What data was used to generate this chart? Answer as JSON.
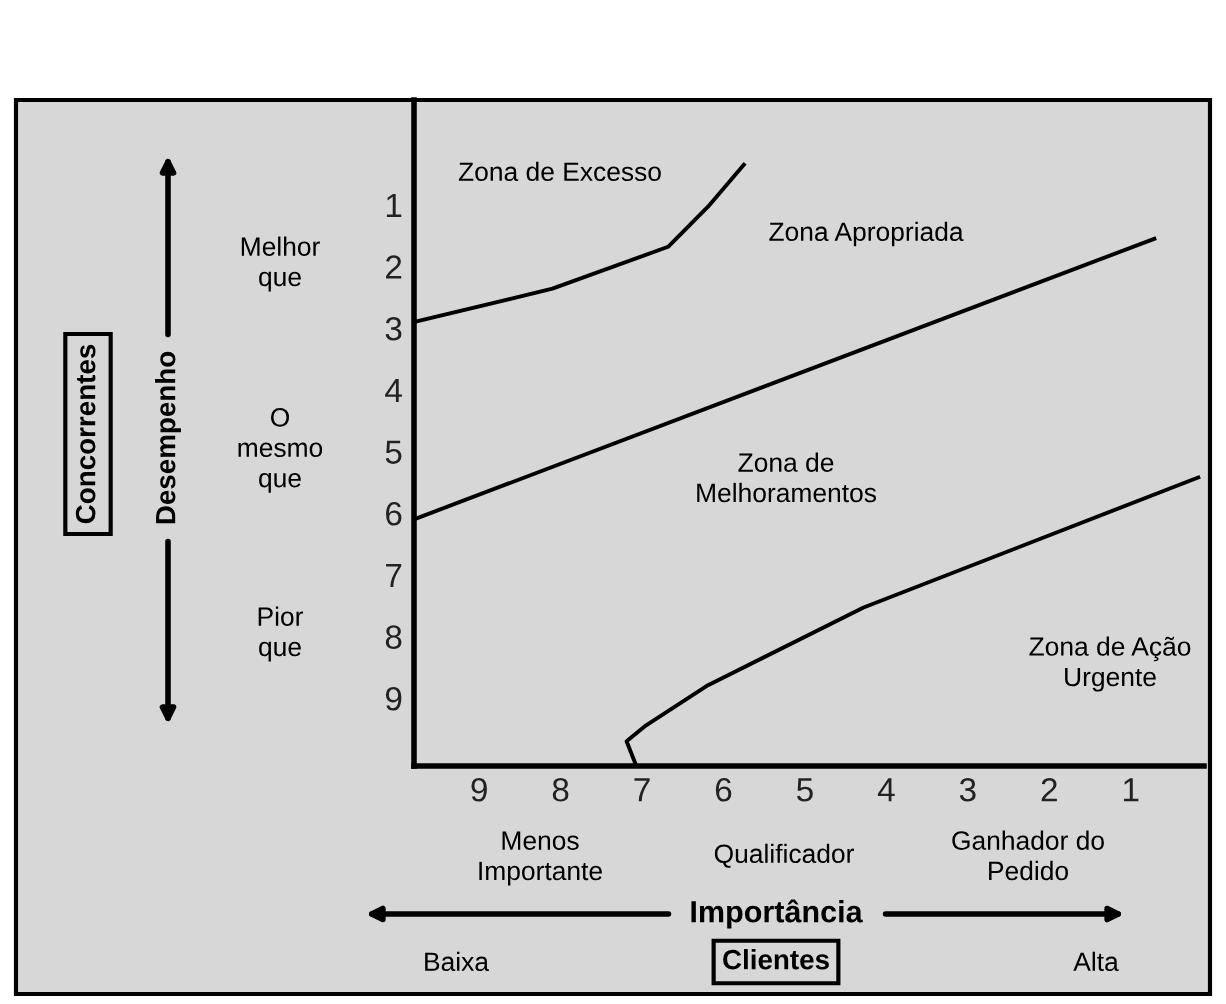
{
  "chart_data": {
    "type": "line",
    "xlabel": "Importância",
    "xlim": [
      9.8,
      0.1
    ],
    "xticks": [
      9,
      8,
      7,
      6,
      5,
      4,
      3,
      2,
      1
    ],
    "ylim": [
      10.1,
      -0.7
    ],
    "yticks": [
      1,
      2,
      3,
      4,
      5,
      6,
      7,
      8,
      9
    ],
    "grid": false,
    "legend": false,
    "marker": "none",
    "line_style": "solid",
    "series": [
      {
        "color": "#000000",
        "x": [
          9.8,
          8.1,
          6.68,
          6.19,
          5.75
        ],
        "values": [
          2.9,
          2.36,
          1.68,
          1.03,
          0.35
        ]
      },
      {
        "color": "#000000",
        "x": [
          9.8,
          0.71
        ],
        "values": [
          6.1,
          1.55
        ]
      },
      {
        "color": "#000000",
        "x": [
          7.07,
          7.19,
          6.95,
          6.19,
          4.28,
          0.17
        ],
        "values": [
          10.1,
          9.7,
          9.44,
          8.79,
          7.53,
          5.42
        ]
      }
    ],
    "annotations": [
      "Zona de Excesso",
      "Zona Apropriada",
      "Zona de\nMelhoramentos",
      "Zona de Ação\nUrgente",
      "Concorrentes",
      "Melhor\nque",
      "O\nmesmo\nque",
      "Pior\nque",
      "Menos\nImportante",
      "Qualificador",
      "Ganhador do\nPedido",
      "Baixa",
      "Clientes",
      "Alta",
      "Desempenho"
    ]
  }
}
